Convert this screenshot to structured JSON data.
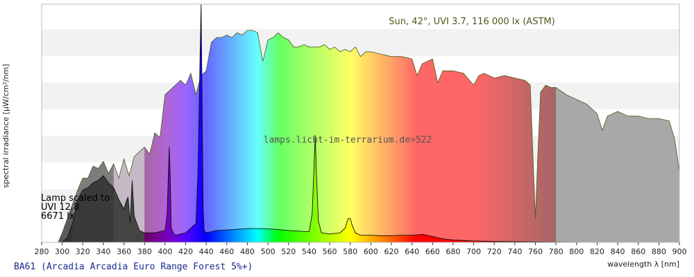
{
  "chart_data": {
    "type": "area",
    "title": "",
    "footer_title": "BA61 (Arcadia Arcadia Euro Range Forest 5%+)",
    "xlabel": "wavelength λ [nm]",
    "ylabel": "spectral irradiance [μW/cm²/nm]",
    "xlim": [
      280,
      900
    ],
    "xticks": [
      280,
      300,
      320,
      340,
      360,
      380,
      400,
      420,
      440,
      460,
      480,
      500,
      520,
      540,
      560,
      580,
      600,
      620,
      640,
      660,
      680,
      700,
      720,
      740,
      760,
      780,
      800,
      820,
      840,
      860,
      880,
      900
    ],
    "ylim": [
      0,
      1.0
    ],
    "y_ticks_labeled": false,
    "grid": "horizontal bands",
    "annotations": {
      "sun_label": "Sun, 42°, UVI 3.7, 116 000 lx (ASTM)",
      "watermark": "lamps.licht-im-terrarium.de>522",
      "lamp_note": [
        "Lamp scaled to",
        "UVI 12.8",
        "6671 lx"
      ]
    },
    "series": [
      {
        "name": "Sun, 42°, UVI 3.7, 116 000 lx (ASTM)",
        "x": [
          280,
          296,
          300,
          305,
          310,
          315,
          320,
          325,
          330,
          335,
          340,
          345,
          350,
          355,
          360,
          365,
          370,
          375,
          380,
          385,
          390,
          395,
          400,
          405,
          410,
          415,
          420,
          425,
          430,
          435,
          440,
          445,
          450,
          455,
          460,
          465,
          470,
          475,
          480,
          485,
          490,
          495,
          500,
          505,
          510,
          515,
          520,
          525,
          530,
          535,
          540,
          545,
          550,
          555,
          560,
          565,
          570,
          575,
          580,
          585,
          590,
          595,
          600,
          610,
          620,
          630,
          640,
          645,
          650,
          660,
          665,
          670,
          680,
          690,
          700,
          705,
          710,
          720,
          730,
          740,
          750,
          755,
          760,
          762,
          765,
          770,
          775,
          780,
          790,
          800,
          810,
          820,
          825,
          830,
          840,
          850,
          860,
          870,
          880,
          890,
          895,
          900
        ],
        "y": [
          0,
          0,
          0.04,
          0.1,
          0.16,
          0.22,
          0.27,
          0.27,
          0.32,
          0.31,
          0.34,
          0.29,
          0.33,
          0.27,
          0.35,
          0.28,
          0.36,
          0.38,
          0.4,
          0.37,
          0.46,
          0.44,
          0.62,
          0.64,
          0.66,
          0.68,
          0.66,
          0.71,
          0.62,
          0.7,
          0.72,
          0.84,
          0.86,
          0.86,
          0.87,
          0.86,
          0.88,
          0.87,
          0.89,
          0.89,
          0.88,
          0.76,
          0.85,
          0.86,
          0.88,
          0.86,
          0.85,
          0.82,
          0.82,
          0.83,
          0.82,
          0.82,
          0.82,
          0.83,
          0.81,
          0.82,
          0.8,
          0.81,
          0.8,
          0.82,
          0.78,
          0.8,
          0.8,
          0.79,
          0.78,
          0.78,
          0.77,
          0.7,
          0.75,
          0.77,
          0.67,
          0.72,
          0.72,
          0.71,
          0.66,
          0.7,
          0.71,
          0.69,
          0.7,
          0.69,
          0.68,
          0.66,
          0.1,
          0.33,
          0.63,
          0.66,
          0.65,
          0.65,
          0.62,
          0.6,
          0.58,
          0.54,
          0.47,
          0.53,
          0.55,
          0.53,
          0.53,
          0.52,
          0.52,
          0.51,
          0.44,
          0.3
        ]
      },
      {
        "name": "Lamp scaled to UVI 12.8",
        "x": [
          280,
          300,
          305,
          310,
          315,
          320,
          325,
          330,
          335,
          340,
          345,
          350,
          355,
          360,
          362,
          364,
          366,
          368,
          370,
          375,
          380,
          390,
          400,
          402,
          404,
          405,
          406,
          408,
          410,
          420,
          430,
          432,
          434,
          435,
          436,
          437,
          438,
          440,
          450,
          460,
          470,
          480,
          490,
          500,
          510,
          520,
          530,
          540,
          543,
          545,
          546,
          547,
          549,
          552,
          560,
          570,
          575,
          578,
          580,
          582,
          585,
          590,
          600,
          610,
          620,
          630,
          640,
          650,
          660,
          670,
          680,
          690,
          700,
          720,
          740,
          760,
          780,
          800,
          900
        ],
        "y": [
          0,
          0,
          0.02,
          0.08,
          0.18,
          0.22,
          0.23,
          0.25,
          0.26,
          0.28,
          0.25,
          0.23,
          0.18,
          0.14,
          0.17,
          0.19,
          0.08,
          0.26,
          0.11,
          0.05,
          0.04,
          0.04,
          0.05,
          0.12,
          0.4,
          0.28,
          0.06,
          0.04,
          0.03,
          0.04,
          0.08,
          0.3,
          0.78,
          1.0,
          0.6,
          0.15,
          0.05,
          0.04,
          0.05,
          0.052,
          0.055,
          0.058,
          0.058,
          0.057,
          0.054,
          0.05,
          0.047,
          0.045,
          0.12,
          0.34,
          0.45,
          0.3,
          0.09,
          0.04,
          0.035,
          0.04,
          0.06,
          0.1,
          0.1,
          0.07,
          0.04,
          0.03,
          0.03,
          0.028,
          0.028,
          0.03,
          0.03,
          0.034,
          0.025,
          0.015,
          0.01,
          0.008,
          0.006,
          0.004,
          0.003,
          0.002,
          0.001,
          0.0,
          0.0
        ]
      }
    ]
  }
}
